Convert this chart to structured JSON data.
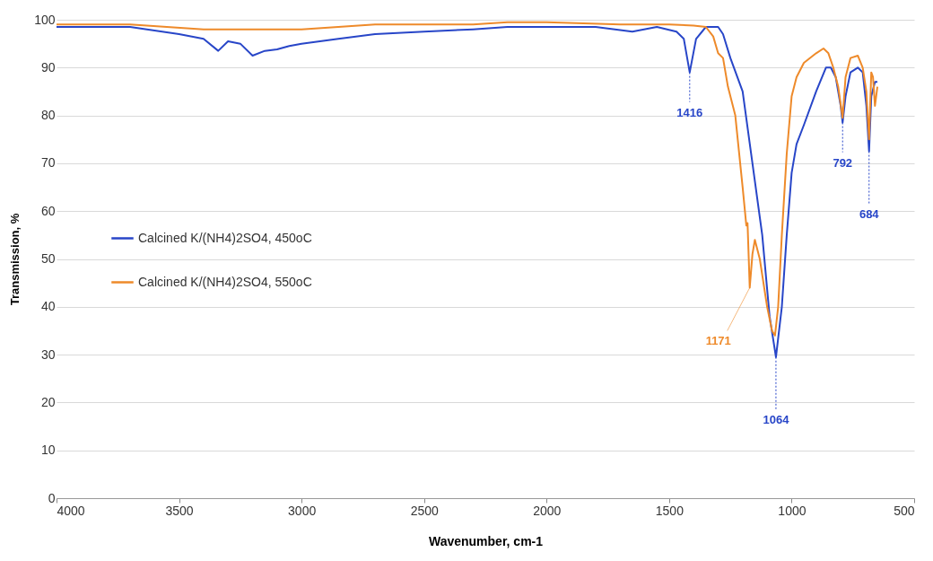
{
  "chart_data": {
    "type": "line",
    "xlabel": "Wavenumber, cm-1",
    "ylabel": "Transmission, %",
    "xlim": [
      4000,
      500
    ],
    "xticks": [
      4000,
      3500,
      3000,
      2500,
      2000,
      1500,
      1000,
      500
    ],
    "ylim": [
      0,
      100
    ],
    "yticks": [
      0,
      10,
      20,
      30,
      40,
      50,
      60,
      70,
      80,
      90,
      100
    ],
    "grid": "y",
    "legend": "left",
    "marker": "none",
    "line_style": "solid",
    "series": [
      {
        "name": "Calcined K/(NH4)2SO4, 450oC",
        "color": "#2846c8",
        "x": [
          4000,
          3700,
          3500,
          3400,
          3340,
          3300,
          3250,
          3200,
          3150,
          3100,
          3050,
          3000,
          2850,
          2700,
          2500,
          2300,
          2160,
          2000,
          1800,
          1650,
          1550,
          1470,
          1440,
          1416,
          1390,
          1350,
          1300,
          1280,
          1250,
          1200,
          1160,
          1120,
          1090,
          1064,
          1040,
          1020,
          1000,
          980,
          950,
          900,
          860,
          840,
          820,
          800,
          792,
          780,
          760,
          730,
          710,
          695,
          684,
          675,
          660,
          650
        ],
        "values": [
          98.5,
          98.5,
          97,
          96,
          93.5,
          95.5,
          95,
          92.5,
          93.5,
          93.8,
          94.5,
          95,
          96,
          97,
          97.5,
          98,
          98.5,
          98.5,
          98.5,
          97.5,
          98.5,
          97.5,
          96,
          89,
          96,
          98.5,
          98.5,
          97,
          92,
          85,
          70,
          55,
          38,
          29.5,
          40,
          55,
          68,
          74,
          78,
          85,
          90,
          90,
          88,
          82,
          78.5,
          84,
          89,
          90,
          89,
          82,
          72.5,
          84,
          87,
          87
        ]
      },
      {
        "name": "Calcined K/(NH4)2SO4, 550oC",
        "color": "#ee8a2a",
        "x": [
          4000,
          3700,
          3400,
          3000,
          2700,
          2300,
          2160,
          2000,
          1700,
          1500,
          1400,
          1350,
          1320,
          1300,
          1280,
          1260,
          1230,
          1200,
          1185,
          1180,
          1171,
          1160,
          1150,
          1130,
          1100,
          1080,
          1068,
          1055,
          1040,
          1020,
          1000,
          980,
          950,
          900,
          870,
          850,
          830,
          810,
          792,
          780,
          760,
          730,
          710,
          695,
          684,
          675,
          668,
          660,
          650
        ],
        "values": [
          99,
          99,
          98,
          98,
          99,
          99,
          99.5,
          99.5,
          99,
          99,
          98.8,
          98.5,
          96.5,
          93,
          92,
          86,
          80,
          65,
          57,
          57.5,
          44,
          51,
          54,
          50,
          40,
          35,
          34,
          40,
          55,
          72,
          84,
          88,
          91,
          93,
          94,
          93,
          90,
          86,
          79.5,
          88,
          92,
          92.5,
          90,
          85,
          75,
          89,
          88,
          82,
          86
        ]
      }
    ],
    "annotations": [
      {
        "text": "1416",
        "x": 1416,
        "y": 89
      },
      {
        "text": "1171",
        "x": 1171,
        "y": 44
      },
      {
        "text": "1064",
        "x": 1064,
        "y": 29.5
      },
      {
        "text": "792",
        "x": 792,
        "y": 78.5
      },
      {
        "text": "684",
        "x": 684,
        "y": 72.5
      }
    ]
  }
}
